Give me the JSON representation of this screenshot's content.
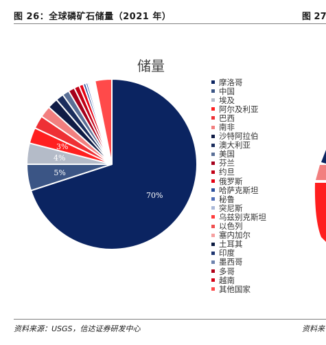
{
  "figure": {
    "title": "图 26：全球磷矿石储量（2021 年）",
    "next_title": "图 27",
    "source": "资料来源：USGS，信达证券研发中心",
    "next_source": "资料来"
  },
  "chart_data": {
    "type": "pie",
    "title": "储量",
    "legend_position": "right",
    "slices": [
      {
        "label": "摩洛哥",
        "value": 70,
        "color": "#0b2461",
        "data_label": "70%"
      },
      {
        "label": "中国",
        "value": 5,
        "color": "#3b5585",
        "data_label": "5%"
      },
      {
        "label": "埃及",
        "value": 4,
        "color": "#b4bbc8",
        "data_label": "4%"
      },
      {
        "label": "阿尔及利亚",
        "value": 3,
        "color": "#ff1f1f",
        "data_label": "3%"
      },
      {
        "label": "巴西",
        "value": 2.5,
        "color": "#ee3035",
        "data_label": ""
      },
      {
        "label": "南非",
        "value": 2.2,
        "color": "#f27f7f",
        "data_label": ""
      },
      {
        "label": "沙特阿拉伯",
        "value": 2,
        "color": "#0f1b45",
        "data_label": ""
      },
      {
        "label": "澳大利亚",
        "value": 1.5,
        "color": "#1b2d5d",
        "data_label": ""
      },
      {
        "label": "美国",
        "value": 1.3,
        "color": "#5a6f96",
        "data_label": ""
      },
      {
        "label": "芬兰",
        "value": 1.2,
        "color": "#a5001c",
        "data_label": ""
      },
      {
        "label": "约旦",
        "value": 1,
        "color": "#c20016",
        "data_label": ""
      },
      {
        "label": "俄罗斯",
        "value": 0.8,
        "color": "#e60012",
        "data_label": ""
      },
      {
        "label": "哈萨克斯坦",
        "value": 0.5,
        "color": "#2a4f9c",
        "data_label": ""
      },
      {
        "label": "秘鲁",
        "value": 0.4,
        "color": "#4f6db8",
        "data_label": ""
      },
      {
        "label": "突尼斯",
        "value": 0.3,
        "color": "#aab8d8",
        "data_label": ""
      },
      {
        "label": "乌兹别克斯坦",
        "value": 0.25,
        "color": "#ff3b3b",
        "data_label": ""
      },
      {
        "label": "以色列",
        "value": 0.2,
        "color": "#f05050",
        "data_label": ""
      },
      {
        "label": "塞内加尔",
        "value": 0.15,
        "color": "#f6a0a0",
        "data_label": ""
      },
      {
        "label": "土耳其",
        "value": 0.1,
        "color": "#0b1a40",
        "data_label": ""
      },
      {
        "label": "印度",
        "value": 0.1,
        "color": "#1e3570",
        "data_label": ""
      },
      {
        "label": "墨西哥",
        "value": 0.1,
        "color": "#6d82ad",
        "data_label": ""
      },
      {
        "label": "多哥",
        "value": 0.1,
        "color": "#b00018",
        "data_label": ""
      },
      {
        "label": "越南",
        "value": 0.1,
        "color": "#d40015",
        "data_label": ""
      },
      {
        "label": "其他国家",
        "value": 3.2,
        "color": "#ff4a4a",
        "data_label": ""
      }
    ]
  }
}
